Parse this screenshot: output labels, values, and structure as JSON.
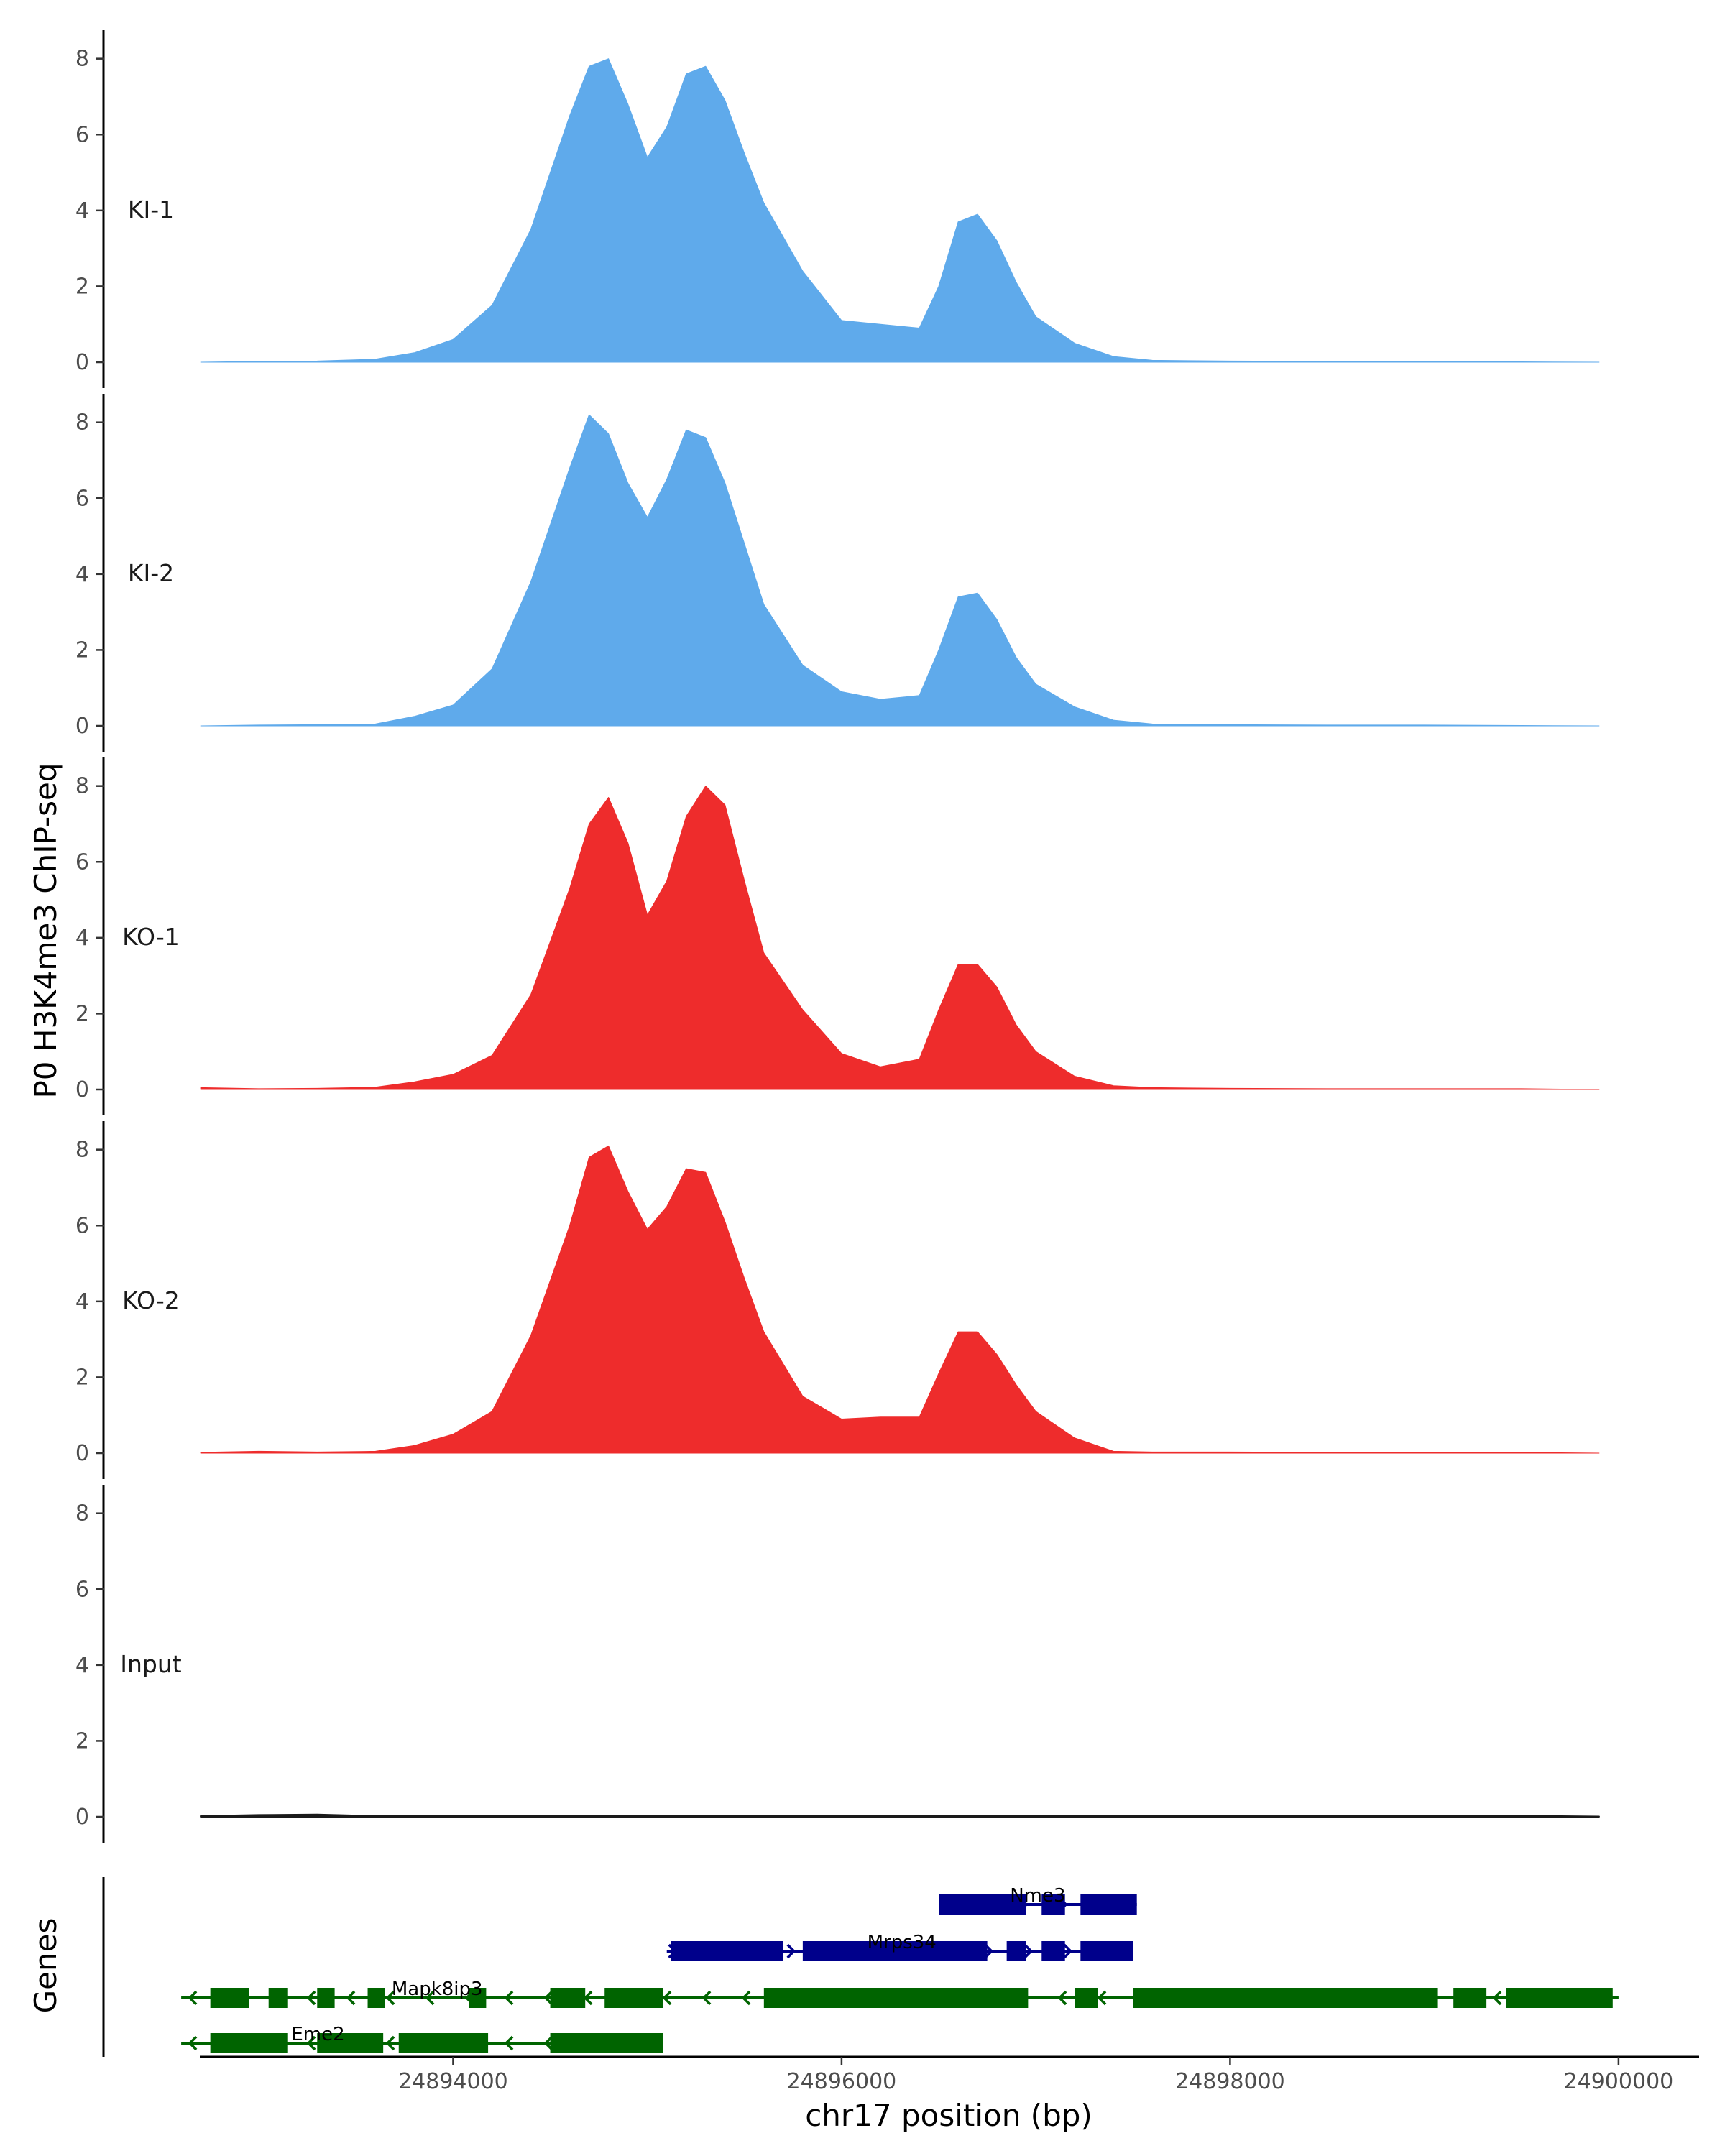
{
  "chart_data": {
    "type": "area",
    "xlabel": "chr17 position (bp)",
    "ylabel": "P0 H3K4me3 ChIP-seq",
    "genes_label": "Genes",
    "xlim": [
      24892200,
      24900400
    ],
    "ylim": [
      0,
      8.6
    ],
    "x_ticks": [
      24894000,
      24896000,
      24898000,
      24900000
    ],
    "x_tick_labels": [
      "24894000",
      "24896000",
      "24898000",
      "24900000"
    ],
    "y_ticks": [
      0,
      2,
      4,
      6,
      8
    ],
    "y_tick_labels": [
      "0",
      "2",
      "4",
      "6",
      "8"
    ],
    "x": [
      24892700,
      24893000,
      24893300,
      24893600,
      24893800,
      24894000,
      24894200,
      24894400,
      24894600,
      24894700,
      24894800,
      24894900,
      24895000,
      24895100,
      24895200,
      24895300,
      24895400,
      24895500,
      24895600,
      24895800,
      24896000,
      24896200,
      24896400,
      24896500,
      24896600,
      24896700,
      24896800,
      24896900,
      24897000,
      24897200,
      24897400,
      24897600,
      24898000,
      24898500,
      24899000,
      24899500,
      24899900
    ],
    "series": [
      {
        "name": "KI-1",
        "color": "#5FAAEB",
        "values": [
          0,
          0.02,
          0.03,
          0.08,
          0.25,
          0.6,
          1.5,
          3.5,
          6.5,
          7.8,
          8.0,
          6.8,
          5.4,
          6.2,
          7.6,
          7.8,
          6.9,
          5.5,
          4.2,
          2.4,
          1.1,
          1.0,
          0.9,
          2.0,
          3.7,
          3.9,
          3.2,
          2.1,
          1.2,
          0.5,
          0.15,
          0.05,
          0.03,
          0.02,
          0.01,
          0.01,
          0
        ]
      },
      {
        "name": "KI-2",
        "color": "#5FAAEB",
        "values": [
          0,
          0.02,
          0.03,
          0.05,
          0.25,
          0.55,
          1.5,
          3.8,
          6.8,
          8.2,
          7.7,
          6.4,
          5.5,
          6.5,
          7.8,
          7.6,
          6.4,
          4.8,
          3.2,
          1.6,
          0.9,
          0.7,
          0.8,
          2.0,
          3.4,
          3.5,
          2.8,
          1.8,
          1.1,
          0.5,
          0.15,
          0.05,
          0.03,
          0.02,
          0.02,
          0.01,
          0
        ]
      },
      {
        "name": "KO-1",
        "color": "#EE2C2C",
        "values": [
          0.05,
          0.02,
          0.03,
          0.06,
          0.2,
          0.4,
          0.9,
          2.5,
          5.3,
          7.0,
          7.7,
          6.5,
          4.6,
          5.5,
          7.2,
          8.0,
          7.5,
          5.5,
          3.6,
          2.1,
          0.95,
          0.6,
          0.8,
          2.1,
          3.3,
          3.3,
          2.7,
          1.7,
          1.0,
          0.35,
          0.1,
          0.05,
          0.03,
          0.02,
          0.02,
          0.02,
          0
        ]
      },
      {
        "name": "KO-2",
        "color": "#EE2C2C",
        "values": [
          0.02,
          0.05,
          0.03,
          0.05,
          0.2,
          0.5,
          1.1,
          3.1,
          6.0,
          7.8,
          8.1,
          6.9,
          5.9,
          6.5,
          7.5,
          7.4,
          6.1,
          4.6,
          3.2,
          1.5,
          0.9,
          0.95,
          0.95,
          2.1,
          3.2,
          3.2,
          2.6,
          1.8,
          1.1,
          0.4,
          0.05,
          0.03,
          0.03,
          0.02,
          0.02,
          0.02,
          0
        ]
      },
      {
        "name": "Input",
        "color": "#1a1a1a",
        "values": [
          0.02,
          0.05,
          0.06,
          0.02,
          0.03,
          0.02,
          0.03,
          0.02,
          0.03,
          0.02,
          0.02,
          0.03,
          0.02,
          0.03,
          0.02,
          0.03,
          0.02,
          0.02,
          0.03,
          0.02,
          0.02,
          0.03,
          0.02,
          0.03,
          0.02,
          0.03,
          0.03,
          0.02,
          0.02,
          0.02,
          0.02,
          0.03,
          0.02,
          0.02,
          0.02,
          0.03,
          0.01
        ]
      }
    ],
    "genes": [
      {
        "name": "Nme3",
        "strand": "+",
        "color": "#00008B",
        "row": 0,
        "start": 24896500,
        "end": 24897520,
        "exons": [
          [
            24896500,
            24896950
          ],
          [
            24897030,
            24897150
          ],
          [
            24897230,
            24897520
          ]
        ]
      },
      {
        "name": "Mrps34",
        "strand": "+",
        "color": "#00008B",
        "row": 1,
        "start": 24895100,
        "end": 24897500,
        "exons": [
          [
            24895120,
            24895700
          ],
          [
            24895800,
            24896750
          ],
          [
            24896850,
            24896950
          ],
          [
            24897030,
            24897150
          ],
          [
            24897230,
            24897500
          ]
        ]
      },
      {
        "name": "Mapk8ip3",
        "strand": "-",
        "color": "#006400",
        "row": 2,
        "start": 24892600,
        "end": 24900000,
        "exons": [
          [
            24892750,
            24892950
          ],
          [
            24893050,
            24893150
          ],
          [
            24893300,
            24893390
          ],
          [
            24893560,
            24893650
          ],
          [
            24894080,
            24894170
          ],
          [
            24894500,
            24894680
          ],
          [
            24894780,
            24895080
          ],
          [
            24895600,
            24896960
          ],
          [
            24897200,
            24897320
          ],
          [
            24897500,
            24899070
          ],
          [
            24899150,
            24899320
          ],
          [
            24899420,
            24899970
          ]
        ]
      },
      {
        "name": "Eme2",
        "strand": "-",
        "color": "#006400",
        "row": 3,
        "start": 24892600,
        "end": 24895080,
        "exons": [
          [
            24892750,
            24893150
          ],
          [
            24893300,
            24893640
          ],
          [
            24893720,
            24894180
          ],
          [
            24894500,
            24895080
          ]
        ]
      }
    ]
  }
}
